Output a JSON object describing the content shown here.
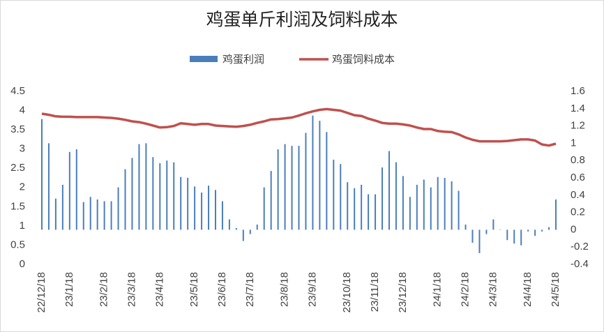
{
  "chart_data": {
    "type": "bar-line",
    "title": "鸡蛋单斤利润及饲料成本",
    "categories": [
      "22/12/18",
      null,
      null,
      null,
      "23/1/18",
      null,
      null,
      null,
      null,
      "23/2/18",
      null,
      null,
      null,
      "23/3/18",
      null,
      null,
      null,
      "23/4/18",
      null,
      null,
      null,
      null,
      "23/5/18",
      null,
      null,
      null,
      "23/6/18",
      null,
      null,
      null,
      "23/7/18",
      null,
      null,
      null,
      null,
      "23/8/18",
      null,
      null,
      null,
      "23/9/18",
      null,
      null,
      null,
      null,
      "23/10/18",
      null,
      null,
      null,
      "23/11/18",
      null,
      null,
      null,
      "23/12/18",
      null,
      null,
      null,
      null,
      "24/1/18",
      null,
      null,
      null,
      "24/2/18",
      null,
      null,
      null,
      "24/3/18",
      null,
      null,
      null,
      null,
      "24/4/18",
      null,
      null,
      null,
      "24/5/18"
    ],
    "series": [
      {
        "name": "鸡蛋利润",
        "type": "bar",
        "axis": "y2",
        "color": "#4a7ebb",
        "values": [
          1.28,
          1.0,
          0.36,
          0.52,
          0.9,
          0.93,
          0.32,
          0.38,
          0.35,
          0.33,
          0.33,
          0.49,
          0.7,
          0.83,
          0.99,
          1.0,
          0.84,
          0.77,
          0.8,
          0.78,
          0.61,
          0.6,
          0.5,
          0.43,
          0.51,
          0.46,
          0.33,
          0.12,
          0.02,
          -0.13,
          -0.05,
          0.06,
          0.49,
          0.68,
          0.93,
          0.99,
          0.97,
          0.97,
          1.12,
          1.32,
          1.26,
          1.13,
          0.81,
          0.76,
          0.55,
          0.48,
          0.52,
          0.41,
          0.41,
          0.72,
          0.91,
          0.78,
          0.62,
          0.38,
          0.52,
          0.58,
          0.49,
          0.61,
          0.6,
          0.56,
          0.45,
          0.06,
          -0.15,
          -0.27,
          -0.05,
          0.12,
          0.0,
          -0.12,
          -0.16,
          -0.18,
          -0.02,
          -0.07,
          -0.02,
          0.03,
          0.35
        ]
      },
      {
        "name": "鸡蛋饲料成本",
        "type": "line",
        "axis": "y",
        "color": "#c0504d",
        "values": [
          3.92,
          3.89,
          3.85,
          3.84,
          3.84,
          3.83,
          3.83,
          3.83,
          3.83,
          3.82,
          3.81,
          3.79,
          3.76,
          3.72,
          3.7,
          3.66,
          3.61,
          3.56,
          3.57,
          3.6,
          3.67,
          3.65,
          3.63,
          3.65,
          3.65,
          3.61,
          3.6,
          3.59,
          3.58,
          3.6,
          3.63,
          3.68,
          3.72,
          3.77,
          3.78,
          3.8,
          3.82,
          3.87,
          3.93,
          3.98,
          4.02,
          4.04,
          4.02,
          4.0,
          3.94,
          3.88,
          3.86,
          3.79,
          3.74,
          3.68,
          3.66,
          3.66,
          3.64,
          3.61,
          3.56,
          3.52,
          3.52,
          3.47,
          3.45,
          3.44,
          3.38,
          3.3,
          3.24,
          3.2,
          3.2,
          3.2,
          3.2,
          3.21,
          3.23,
          3.25,
          3.25,
          3.22,
          3.12,
          3.09,
          3.14
        ]
      }
    ],
    "ylim": [
      0,
      4.5
    ],
    "yticks": [
      0,
      0.5,
      1,
      1.5,
      2,
      2.5,
      3,
      3.5,
      4,
      4.5
    ],
    "y2lim": [
      -0.4,
      1.6
    ],
    "y2ticks": [
      -0.4,
      -0.2,
      0,
      0.2,
      0.4,
      0.6,
      0.8,
      1,
      1.2,
      1.4,
      1.6
    ],
    "legend": "top",
    "grid": false
  }
}
